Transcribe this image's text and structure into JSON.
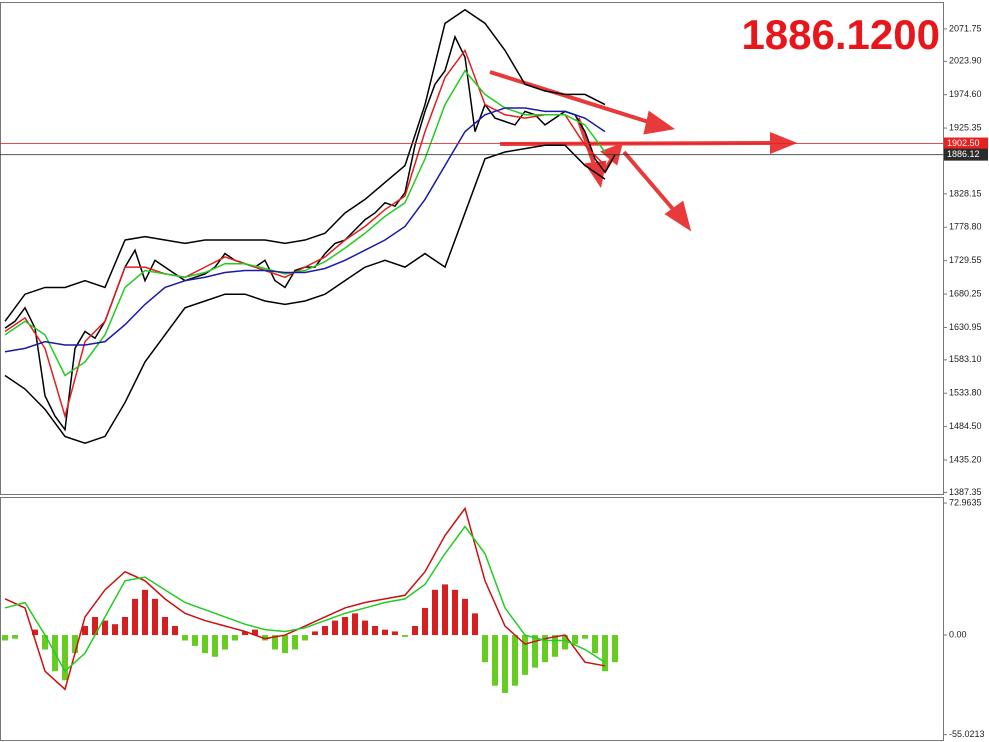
{
  "chart_data": [
    {
      "type": "line",
      "title": "1886.1200",
      "x": [
        0,
        1,
        2,
        3,
        4,
        5,
        6,
        7,
        8,
        9,
        10,
        11,
        12,
        13,
        14,
        15,
        16,
        17,
        18,
        19,
        20,
        21,
        22,
        23,
        24,
        25,
        26,
        27,
        28,
        29,
        30,
        31,
        32,
        33,
        34,
        35,
        36,
        37,
        38,
        39,
        40,
        41,
        42,
        43,
        44,
        45,
        46,
        47,
        48,
        49,
        50,
        51,
        52,
        53,
        54,
        55,
        56,
        57,
        58,
        59,
        60,
        61
      ],
      "ylim": [
        1385,
        2110
      ],
      "yticks": [
        {
          "value": 2071.75,
          "label": "2071.75"
        },
        {
          "value": 2023.9,
          "label": "2023.90"
        },
        {
          "value": 1974.6,
          "label": "1974.60"
        },
        {
          "value": 1925.35,
          "label": "1925.35"
        },
        1828.15,
        {
          "value": 1778.8,
          "label": "1778.80"
        },
        1729.55,
        1680.25,
        1630.95,
        {
          "value": 1583.1,
          "label": "1583.10"
        },
        {
          "value": 1533.8,
          "label": "1533.80"
        },
        {
          "value": 1484.5,
          "label": "1484.50"
        },
        {
          "value": 1435.2,
          "label": "1435.20"
        },
        1387.35
      ],
      "price_lines": [
        {
          "value": 1902.5,
          "label": "1902.50"
        },
        1886.12
      ],
      "price_line_colors": [
        "#e82020",
        "#2b2b2b"
      ],
      "series": [
        {
          "color": "#000000",
          "values": [
            1630,
            1640,
            1660,
            1630,
            1530,
            1500,
            1480,
            1600,
            1625,
            1615,
            1640,
            1680,
            1720,
            1745,
            1700,
            1730,
            1720,
            1710,
            1700,
            1705,
            1710,
            1720,
            1740,
            1730,
            1725,
            1720,
            1730,
            1700,
            1690,
            1715,
            1720,
            1720,
            1740,
            1755,
            1760,
            1775,
            1790,
            1800,
            1815,
            1810,
            1830,
            1900,
            1950,
            1990,
            2010,
            2060,
            2030,
            1920,
            1960,
            1940,
            1935,
            1930,
            1950,
            1945,
            1930,
            1940,
            1950,
            1945,
            1920,
            1880,
            1860,
            1886
          ]
        },
        {
          "color": "#e02020",
          "x": [
            0,
            2,
            4,
            6,
            8,
            10,
            12,
            14,
            16,
            18,
            20,
            22,
            24,
            26,
            28,
            30,
            32,
            34,
            36,
            38,
            40,
            42,
            44,
            46,
            48,
            50,
            52,
            54,
            56,
            58,
            60
          ],
          "values": [
            1625,
            1645,
            1600,
            1500,
            1610,
            1640,
            1720,
            1720,
            1710,
            1705,
            1720,
            1735,
            1725,
            1715,
            1705,
            1720,
            1735,
            1760,
            1780,
            1805,
            1825,
            1920,
            2000,
            2040,
            1960,
            1945,
            1940,
            1945,
            1945,
            1900,
            1870
          ]
        },
        {
          "color": "#22cc22",
          "x": [
            0,
            2,
            4,
            6,
            8,
            10,
            12,
            14,
            16,
            18,
            20,
            22,
            24,
            26,
            28,
            30,
            32,
            34,
            36,
            38,
            40,
            42,
            44,
            46,
            48,
            50,
            52,
            54,
            56,
            58,
            60
          ],
          "values": [
            1620,
            1640,
            1620,
            1560,
            1580,
            1620,
            1690,
            1715,
            1710,
            1705,
            1712,
            1725,
            1725,
            1718,
            1710,
            1715,
            1728,
            1748,
            1770,
            1795,
            1815,
            1880,
            1960,
            2010,
            1975,
            1955,
            1945,
            1945,
            1945,
            1930,
            1890
          ]
        },
        {
          "color": "#1a1aa8",
          "x": [
            0,
            2,
            4,
            6,
            8,
            10,
            12,
            14,
            16,
            18,
            20,
            22,
            24,
            26,
            28,
            30,
            32,
            34,
            36,
            38,
            40,
            42,
            44,
            46,
            48,
            50,
            52,
            54,
            56,
            58,
            60
          ],
          "values": [
            1595,
            1600,
            1610,
            1605,
            1605,
            1610,
            1635,
            1665,
            1690,
            1700,
            1705,
            1712,
            1715,
            1715,
            1712,
            1712,
            1718,
            1730,
            1745,
            1760,
            1780,
            1820,
            1870,
            1920,
            1945,
            1955,
            1955,
            1950,
            1950,
            1940,
            1920
          ]
        },
        {
          "color": "#000000",
          "x": [
            0,
            2,
            4,
            6,
            8,
            10,
            12,
            14,
            16,
            18,
            20,
            22,
            24,
            26,
            28,
            30,
            32,
            34,
            36,
            38,
            40,
            42,
            44,
            46,
            48,
            50,
            52,
            54,
            56,
            58,
            60
          ],
          "values": [
            1640,
            1680,
            1690,
            1690,
            1700,
            1690,
            1760,
            1765,
            1760,
            1755,
            1760,
            1760,
            1760,
            1760,
            1755,
            1760,
            1770,
            1800,
            1820,
            1845,
            1870,
            1960,
            2080,
            2100,
            2080,
            2040,
            1990,
            1980,
            1975,
            1975,
            1960
          ]
        },
        {
          "color": "#000000",
          "x": [
            0,
            2,
            4,
            6,
            8,
            10,
            12,
            14,
            16,
            18,
            20,
            22,
            24,
            26,
            28,
            30,
            32,
            34,
            36,
            38,
            40,
            42,
            44,
            46,
            48,
            50,
            52,
            54,
            56,
            58,
            60
          ],
          "values": [
            1560,
            1540,
            1510,
            1470,
            1460,
            1470,
            1520,
            1580,
            1620,
            1660,
            1670,
            1680,
            1680,
            1670,
            1665,
            1670,
            1680,
            1700,
            1720,
            1730,
            1720,
            1740,
            1720,
            1800,
            1880,
            1890,
            1895,
            1900,
            1900,
            1870,
            1850
          ]
        }
      ]
    },
    {
      "type": "bar",
      "ylim": [
        -58,
        76.3
      ],
      "yticks": [
        72.9635,
        {
          "value": 0,
          "label": "0.00"
        },
        -55.0213
      ],
      "series": [
        {
          "type": "bar",
          "color": "#d42020",
          "negative_color": "#66cc22",
          "values": [
            -3,
            -2,
            0,
            3,
            -8,
            -20,
            -25,
            -10,
            5,
            10,
            8,
            6,
            10,
            20,
            25,
            20,
            10,
            5,
            -3,
            -6,
            -10,
            -12,
            -8,
            -3,
            2,
            3,
            -3,
            -8,
            -10,
            -8,
            -3,
            2,
            5,
            8,
            10,
            12,
            8,
            5,
            3,
            2,
            -1,
            5,
            15,
            25,
            28,
            25,
            20,
            12,
            -15,
            -28,
            -32,
            -28,
            -22,
            -18,
            -15,
            -12,
            -8,
            -5,
            -2,
            -10,
            -20,
            -15
          ]
        },
        {
          "type": "line",
          "color": "#cc1010",
          "x": [
            0,
            2,
            4,
            6,
            8,
            10,
            12,
            14,
            16,
            18,
            20,
            22,
            24,
            26,
            28,
            30,
            32,
            34,
            36,
            38,
            40,
            42,
            44,
            46,
            48,
            50,
            52,
            54,
            56,
            58,
            60
          ],
          "values": [
            20,
            15,
            -20,
            -30,
            10,
            25,
            35,
            30,
            20,
            12,
            8,
            5,
            2,
            -2,
            0,
            5,
            10,
            15,
            18,
            20,
            22,
            35,
            55,
            70,
            30,
            5,
            -5,
            -2,
            0,
            -15,
            -17
          ]
        },
        {
          "type": "line",
          "color": "#22cc22",
          "x": [
            0,
            2,
            4,
            6,
            8,
            10,
            12,
            14,
            16,
            18,
            20,
            22,
            24,
            26,
            28,
            30,
            32,
            34,
            36,
            38,
            40,
            42,
            44,
            46,
            48,
            50,
            52,
            54,
            56,
            58,
            60
          ],
          "values": [
            15,
            18,
            0,
            -20,
            -10,
            10,
            30,
            32,
            25,
            18,
            14,
            10,
            6,
            3,
            2,
            4,
            8,
            12,
            15,
            18,
            20,
            28,
            45,
            60,
            45,
            15,
            0,
            -3,
            -3,
            -8,
            -15
          ]
        }
      ]
    }
  ]
}
